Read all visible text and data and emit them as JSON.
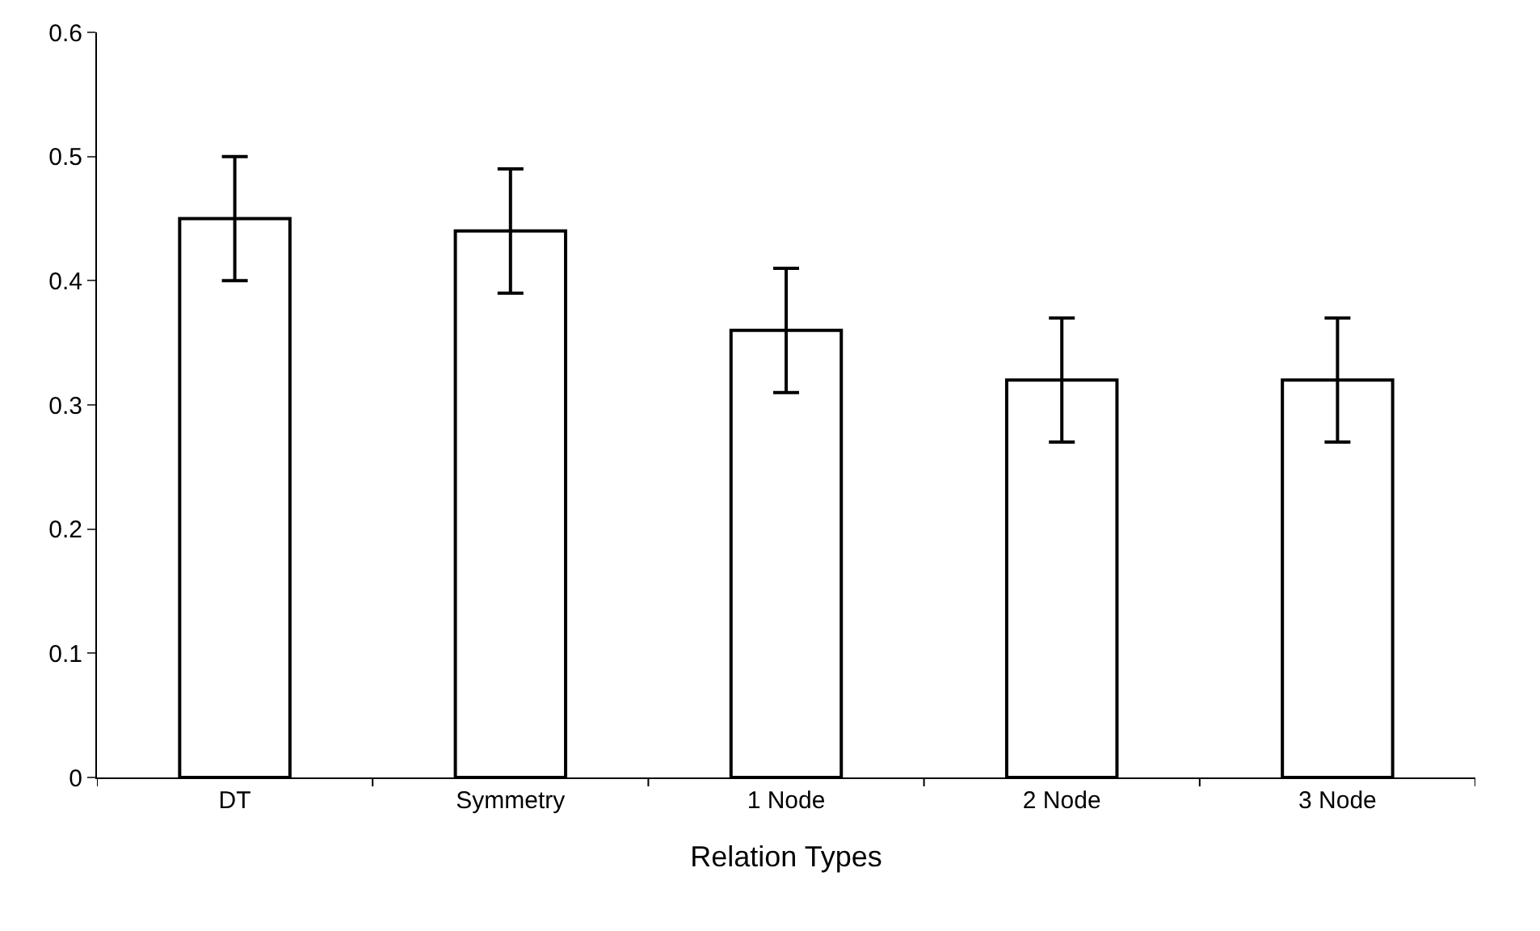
{
  "chart_data": {
    "type": "bar",
    "xlabel": "Relation Types",
    "categories": [
      "DT",
      "Symmetry",
      "1 Node",
      "2 Node",
      "3 Node"
    ],
    "values": [
      0.45,
      0.44,
      0.36,
      0.32,
      0.32
    ],
    "errors": [
      0.05,
      0.05,
      0.05,
      0.05,
      0.05
    ],
    "color": "#ffffff",
    "ylim": [
      0,
      0.6
    ],
    "yticks": [
      {
        "value": 0,
        "label": "0"
      },
      0.1,
      0.2,
      0.3,
      0.4,
      0.5,
      0.6
    ],
    "ylabel": null
  }
}
